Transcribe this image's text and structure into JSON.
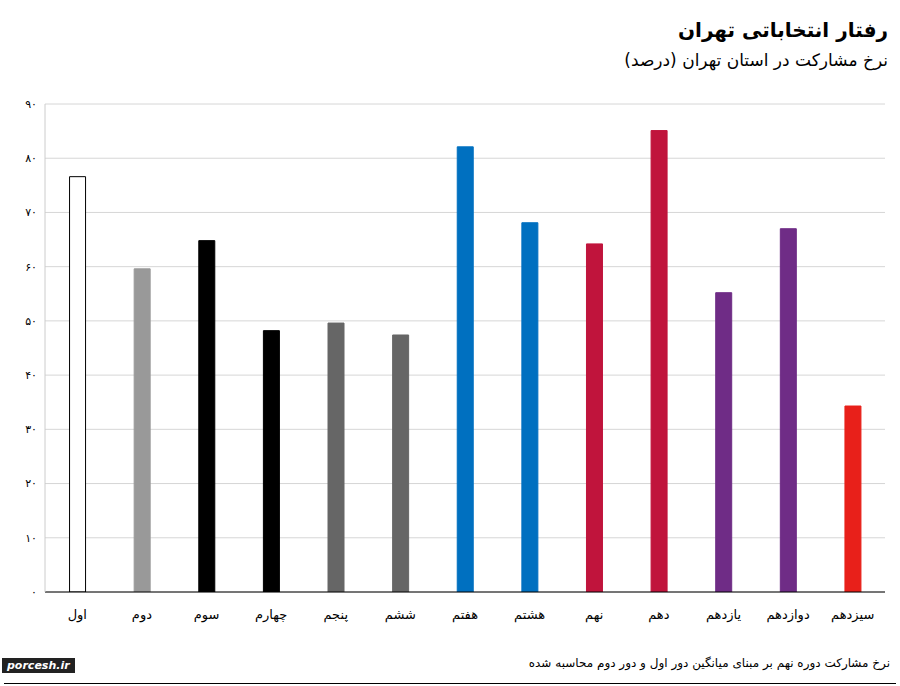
{
  "chart_data": {
    "type": "bar",
    "title": "رفتار انتخاباتی تهران",
    "subtitle": "نرخ مشارکت در استان تهران (درصد)",
    "annotations": [
      "نرخ مشارکت دوره نهم بر مبنای میانگین دور اول و دور دوم محاسبه شده",
      "porcesh.ir"
    ],
    "categories": [
      "اول",
      "دوم",
      "سوم",
      "چهارم",
      "پنجم",
      "ششم",
      "هفتم",
      "هشتم",
      "نهم",
      "دهم",
      "یازدهم",
      "دوازدهم",
      "سیزدهم"
    ],
    "values": [
      76.6,
      59.6,
      64.8,
      48.2,
      49.6,
      47.4,
      82.1,
      68.1,
      64.2,
      85.1,
      55.2,
      67.0,
      34.3
    ],
    "colors": [
      "#ffffff",
      "#999999",
      "#000000",
      "#000000",
      "#666666",
      "#666666",
      "#0070c0",
      "#0070c0",
      "#c0143c",
      "#c0143c",
      "#6f2c86",
      "#6f2c86",
      "#e8201a"
    ],
    "ylim": [
      0,
      90
    ],
    "yticks": [
      {
        "value": 0,
        "label": "۰"
      },
      {
        "value": 10,
        "label": "۱۰"
      },
      {
        "value": 20,
        "label": "۲۰"
      },
      {
        "value": 30,
        "label": "۳۰"
      },
      {
        "value": 40,
        "label": "۴۰"
      },
      {
        "value": 50,
        "label": "۵۰"
      },
      {
        "value": 60,
        "label": "۶۰"
      },
      {
        "value": 70,
        "label": "۷۰"
      },
      {
        "value": 80,
        "label": "۸۰"
      },
      {
        "value": 90,
        "label": "۹۰"
      }
    ],
    "grid": true
  }
}
